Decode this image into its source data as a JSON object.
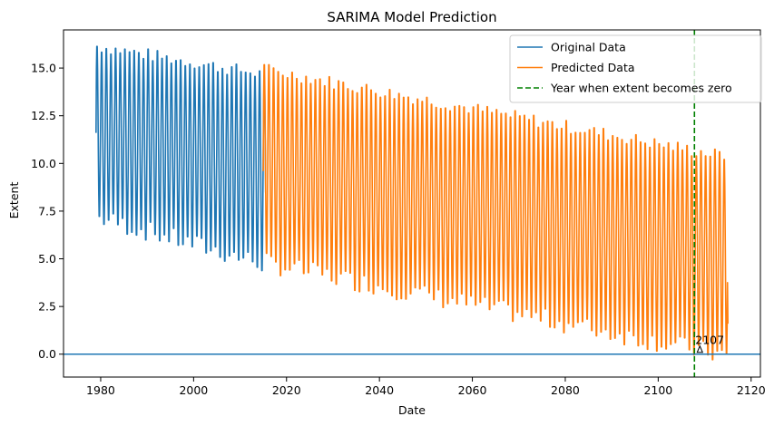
{
  "chart_data": {
    "type": "line",
    "title": "SARIMA Model Prediction",
    "xlabel": "Date",
    "ylabel": "Extent",
    "xlim": [
      1972,
      2122
    ],
    "ylim": [
      -1.2,
      17.0
    ],
    "xticks": [
      1980,
      2000,
      2020,
      2040,
      2060,
      2080,
      2100,
      2120
    ],
    "xtick_labels": [
      "1980",
      "2000",
      "2020",
      "2040",
      "2060",
      "2080",
      "2100",
      "2120"
    ],
    "yticks": [
      0.0,
      2.5,
      5.0,
      7.5,
      10.0,
      12.5,
      15.0
    ],
    "ytick_labels": [
      "0.0",
      "2.5",
      "5.0",
      "7.5",
      "10.0",
      "12.5",
      "15.0"
    ],
    "grid": false,
    "legend_position": "top-right",
    "series": [
      {
        "name": "Original Data",
        "color": "#1f77b4",
        "style": "solid",
        "x_start": 1979.0,
        "x_end": 2015.5,
        "max_start": 16.3,
        "max_end": 14.8,
        "min_start": 7.0,
        "min_end": 4.5,
        "initial_value": 11.6
      },
      {
        "name": "Predicted Data",
        "color": "#ff7f0e",
        "style": "solid",
        "x_start": 2015.0,
        "x_end": 2115.0,
        "max_start": 15.1,
        "max_end": 10.5,
        "min_start": 4.6,
        "min_end": -0.3,
        "initial_value": 9.6,
        "final_value": 1.6
      }
    ],
    "reference_lines": [
      {
        "name": "Year when extent becomes zero",
        "orientation": "vertical",
        "x": 2107.8,
        "color": "#008000",
        "style": "dashed"
      },
      {
        "orientation": "horizontal",
        "y": 0.0,
        "color": "#1f77b4",
        "style": "solid"
      }
    ],
    "annotation": {
      "text": "2107",
      "x": 2107.8,
      "y": 0.0
    }
  }
}
